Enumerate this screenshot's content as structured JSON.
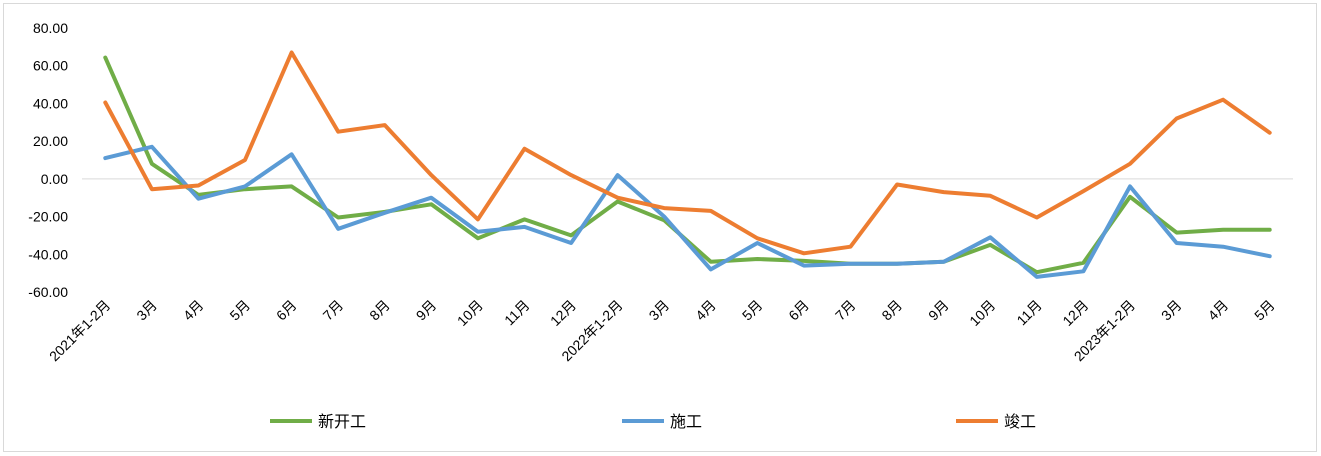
{
  "chart_data": {
    "type": "line",
    "title": "",
    "xlabel": "",
    "ylabel": "",
    "ylim": [
      -60,
      80
    ],
    "yticks": [
      "80.00",
      "60.00",
      "40.00",
      "20.00",
      "0.00",
      "-20.00",
      "-40.00",
      "-60.00"
    ],
    "categories": [
      "2021年1-2月",
      "3月",
      "4月",
      "5月",
      "6月",
      "7月",
      "8月",
      "9月",
      "10月",
      "11月",
      "12月",
      "2022年1-2月",
      "3月",
      "4月",
      "5月",
      "6月",
      "7月",
      "8月",
      "9月",
      "10月",
      "11月",
      "12月",
      "2023年1-2月",
      "3月",
      "4月",
      "5月"
    ],
    "grid": false,
    "legend_position": "bottom",
    "series": [
      {
        "name": "新开工",
        "color": "#70ad47",
        "values": [
          64.3,
          8.0,
          -8.5,
          -5.5,
          -4.0,
          -20.5,
          -17.5,
          -13.5,
          -31.5,
          -21.5,
          -30.0,
          -12.0,
          -22.0,
          -44.0,
          -42.5,
          -43.5,
          -45.0,
          -45.0,
          -44.0,
          -35.0,
          -49.5,
          -44.5,
          -9.5,
          -28.5,
          -27.0,
          -27.0
        ]
      },
      {
        "name": "施工",
        "color": "#5b9bd5",
        "values": [
          11.0,
          17.0,
          -10.5,
          -4.0,
          13.0,
          -26.5,
          -18.0,
          -10.0,
          -28.0,
          -25.5,
          -34.0,
          2.0,
          -20.0,
          -48.0,
          -34.0,
          -46.0,
          -45.0,
          -45.0,
          -44.0,
          -31.0,
          -52.0,
          -49.0,
          -4.0,
          -34.0,
          -36.0,
          -41.0
        ]
      },
      {
        "name": "竣工",
        "color": "#ed7d31",
        "values": [
          40.5,
          -5.5,
          -3.5,
          10.0,
          67.0,
          25.0,
          28.5,
          2.0,
          -21.5,
          16.0,
          2.0,
          -10.0,
          -15.5,
          -17.0,
          -31.5,
          -39.5,
          -36.0,
          -3.0,
          -7.0,
          -9.0,
          -20.5,
          -6.5,
          8.0,
          32.0,
          42.0,
          24.5
        ]
      }
    ]
  }
}
